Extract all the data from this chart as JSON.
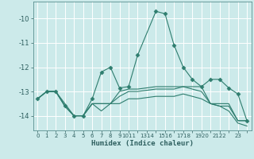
{
  "xlabel": "Humidex (Indice chaleur)",
  "bg_color": "#cceaea",
  "grid_color": "#ffffff",
  "line_color": "#2e7d6e",
  "xlim": [
    -0.5,
    23.5
  ],
  "ylim": [
    -14.6,
    -9.3
  ],
  "xticks": [
    0,
    1,
    2,
    3,
    4,
    5,
    6,
    7,
    8,
    9,
    10,
    11,
    12,
    13,
    14,
    15,
    16,
    17,
    18,
    19,
    20,
    21,
    22,
    23
  ],
  "xtick_labels": [
    "0",
    "1",
    "2",
    "3",
    "4",
    "5",
    "6",
    "7",
    "8",
    "9",
    "1011",
    "",
    "1314",
    "",
    "1516",
    "",
    "1718",
    "",
    "1920",
    "",
    "2122",
    "",
    "23",
    ""
  ],
  "yticks": [
    -14,
    -13,
    -12,
    -11,
    -10
  ],
  "lines": [
    {
      "x": [
        0,
        1,
        2,
        3,
        4,
        5,
        6,
        7,
        8,
        9,
        10,
        11,
        13,
        14,
        15,
        16,
        17,
        18,
        19,
        20,
        21,
        22,
        23
      ],
      "y": [
        -13.3,
        -13.0,
        -13.0,
        -13.6,
        -14.0,
        -14.0,
        -13.3,
        -12.2,
        -12.0,
        -12.85,
        -12.8,
        -11.5,
        -9.7,
        -9.8,
        -11.1,
        -12.0,
        -12.5,
        -12.8,
        -12.5,
        -12.5,
        -12.85,
        -13.1,
        -14.2
      ],
      "marker": "D",
      "markersize": 2.5
    },
    {
      "x": [
        0,
        1,
        2,
        3,
        4,
        5,
        6,
        7,
        8,
        9,
        10,
        11,
        13,
        14,
        15,
        16,
        17,
        18,
        19,
        20,
        21,
        22,
        23
      ],
      "y": [
        -13.3,
        -13.0,
        -13.0,
        -13.5,
        -14.0,
        -14.0,
        -13.5,
        -13.5,
        -13.5,
        -13.0,
        -12.9,
        -12.9,
        -12.8,
        -12.8,
        -12.8,
        -12.8,
        -12.8,
        -12.8,
        -13.5,
        -13.5,
        -13.5,
        -14.2,
        -14.2
      ],
      "marker": null,
      "markersize": 0
    },
    {
      "x": [
        0,
        1,
        2,
        3,
        4,
        5,
        6,
        7,
        8,
        9,
        10,
        11,
        13,
        14,
        15,
        16,
        17,
        18,
        19,
        20,
        21,
        22,
        23
      ],
      "y": [
        -13.3,
        -13.0,
        -13.0,
        -13.6,
        -14.0,
        -14.0,
        -13.5,
        -13.5,
        -13.5,
        -13.2,
        -13.0,
        -13.0,
        -12.9,
        -12.9,
        -12.9,
        -12.8,
        -12.9,
        -13.0,
        -13.5,
        -13.6,
        -13.6,
        -14.2,
        -14.2
      ],
      "marker": null,
      "markersize": 0
    },
    {
      "x": [
        0,
        1,
        2,
        3,
        4,
        5,
        6,
        7,
        8,
        9,
        10,
        11,
        13,
        14,
        15,
        16,
        17,
        18,
        19,
        20,
        21,
        22,
        23
      ],
      "y": [
        -13.3,
        -13.0,
        -13.0,
        -13.6,
        -14.0,
        -14.0,
        -13.5,
        -13.8,
        -13.5,
        -13.5,
        -13.3,
        -13.3,
        -13.2,
        -13.2,
        -13.2,
        -13.1,
        -13.2,
        -13.3,
        -13.5,
        -13.6,
        -13.8,
        -14.3,
        -14.42
      ],
      "marker": null,
      "markersize": 0
    }
  ]
}
